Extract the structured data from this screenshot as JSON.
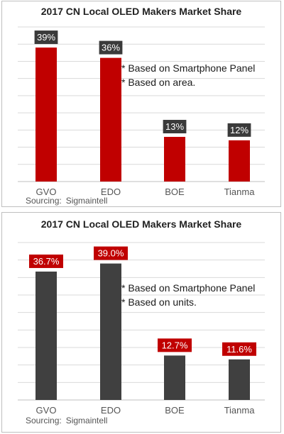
{
  "chart_data": [
    {
      "type": "bar",
      "title": "2017 CN Local OLED Makers Market Share",
      "categories": [
        "GVO",
        "EDO",
        "BOE",
        "Tianma"
      ],
      "values": [
        39,
        36,
        13,
        12
      ],
      "value_labels": [
        "39%",
        "36%",
        "13%",
        "12%"
      ],
      "ylim": [
        0,
        45
      ],
      "grid": true,
      "notes": [
        "* Based on Smartphone Panel",
        "* Based on area."
      ],
      "source_label": "Sourcing:",
      "source_name": "Sigmaintell",
      "colors": {
        "bar": "#c00000",
        "label_bg": "#3a3a3a",
        "label_text": "#ffffff"
      }
    },
    {
      "type": "bar",
      "title": "2017 CN Local OLED Makers Market Share",
      "categories": [
        "GVO",
        "EDO",
        "BOE",
        "Tianma"
      ],
      "values": [
        36.7,
        39.0,
        12.7,
        11.6
      ],
      "value_labels": [
        "36.7%",
        "39.0%",
        "12.7%",
        "11.6%"
      ],
      "ylim": [
        0,
        45
      ],
      "grid": true,
      "notes": [
        "* Based on Smartphone Panel",
        "* Based on units."
      ],
      "source_label": "Sourcing:",
      "source_name": "Sigmaintell",
      "colors": {
        "bar": "#404040",
        "label_bg": "#c00000",
        "label_text": "#ffffff"
      }
    }
  ]
}
